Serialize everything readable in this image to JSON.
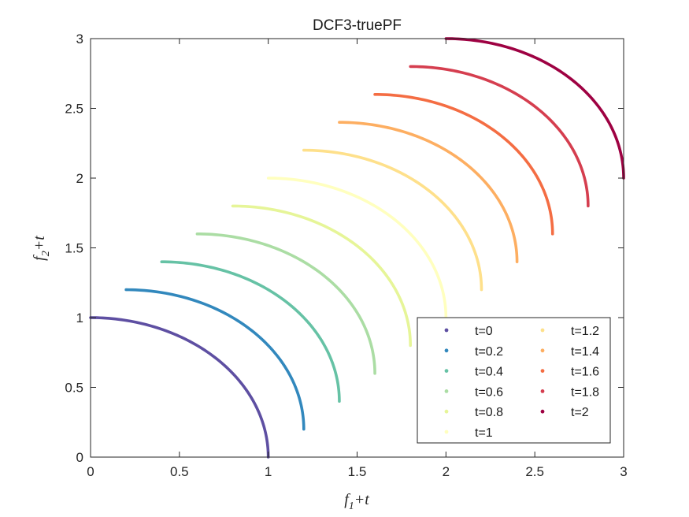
{
  "chart_data": {
    "type": "line",
    "title": "DCF3-truePF",
    "xlabel": {
      "base": "f",
      "sub": "1",
      "suffix": "+t"
    },
    "ylabel": {
      "base": "f",
      "sub": "2",
      "suffix": "+t"
    },
    "xlim": [
      0,
      3
    ],
    "ylim": [
      0,
      3
    ],
    "xticks": [
      0,
      0.5,
      1,
      1.5,
      2,
      2.5,
      3
    ],
    "yticks": [
      0,
      0.5,
      1,
      1.5,
      2,
      2.5,
      3
    ],
    "xtick_labels": [
      "0",
      "0.5",
      "1",
      "1.5",
      "2",
      "2.5",
      "3"
    ],
    "ytick_labels": [
      "0",
      "0.5",
      "1",
      "1.5",
      "2",
      "2.5",
      "3"
    ],
    "grid": false,
    "legend_position": "bottom-right",
    "curve_shape": "quarter circle: f1 = t + cos(theta), f2 = t + sin(theta), theta from 0 to 90 degrees",
    "series": [
      {
        "name": "t=0",
        "t": 0.0,
        "color": "#5e4fa2"
      },
      {
        "name": "t=0.2",
        "t": 0.2,
        "color": "#3288bd"
      },
      {
        "name": "t=0.4",
        "t": 0.4,
        "color": "#66c2a5"
      },
      {
        "name": "t=0.6",
        "t": 0.6,
        "color": "#abdda4"
      },
      {
        "name": "t=0.8",
        "t": 0.8,
        "color": "#e6f598"
      },
      {
        "name": "t=1",
        "t": 1.0,
        "color": "#ffffbf"
      },
      {
        "name": "t=1.2",
        "t": 1.2,
        "color": "#fee08b"
      },
      {
        "name": "t=1.4",
        "t": 1.4,
        "color": "#fdae61"
      },
      {
        "name": "t=1.6",
        "t": 1.6,
        "color": "#f46d43"
      },
      {
        "name": "t=1.8",
        "t": 1.8,
        "color": "#d53e4f"
      },
      {
        "name": "t=2",
        "t": 2.0,
        "color": "#9e0142"
      }
    ]
  }
}
